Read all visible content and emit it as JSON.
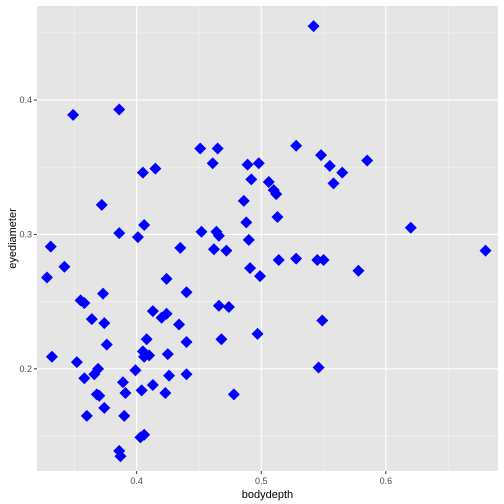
{
  "chart_data": {
    "type": "scatter",
    "xlabel": "bodydepth",
    "ylabel": "eyediameter",
    "xlim": [
      0.32,
      0.69
    ],
    "ylim": [
      0.124,
      0.47
    ],
    "x_ticks": [
      0.4,
      0.5,
      0.6
    ],
    "x_tick_labels": [
      "0.4",
      "0.5",
      "0.6"
    ],
    "y_ticks": [
      0.2,
      0.3,
      0.4
    ],
    "y_tick_labels": [
      "0.2",
      "0.3",
      "0.4"
    ],
    "grid": true,
    "legend": "none",
    "marker": "diamond",
    "colors": {
      "panel_background": "#e5e5e5",
      "grid_major": "#ffffff",
      "point": "#0000ff",
      "tick": "#333333"
    },
    "x": [
      0.542,
      0.349,
      0.386,
      0.451,
      0.465,
      0.528,
      0.498,
      0.489,
      0.461,
      0.548,
      0.585,
      0.415,
      0.405,
      0.506,
      0.555,
      0.492,
      0.51,
      0.512,
      0.565,
      0.558,
      0.486,
      0.452,
      0.372,
      0.513,
      0.62,
      0.406,
      0.386,
      0.401,
      0.488,
      0.464,
      0.466,
      0.331,
      0.435,
      0.472,
      0.462,
      0.514,
      0.49,
      0.528,
      0.545,
      0.55,
      0.491,
      0.578,
      0.68,
      0.328,
      0.342,
      0.424,
      0.499,
      0.44,
      0.373,
      0.355,
      0.358,
      0.466,
      0.474,
      0.413,
      0.424,
      0.364,
      0.374,
      0.42,
      0.434,
      0.497,
      0.408,
      0.468,
      0.44,
      0.376,
      0.405,
      0.406,
      0.41,
      0.425,
      0.399,
      0.332,
      0.352,
      0.44,
      0.426,
      0.546,
      0.369,
      0.366,
      0.389,
      0.413,
      0.358,
      0.404,
      0.423,
      0.391,
      0.37,
      0.368,
      0.478,
      0.374,
      0.39,
      0.36,
      0.406,
      0.403,
      0.386,
      0.387,
      0.549
    ],
    "y": [
      0.455,
      0.389,
      0.393,
      0.364,
      0.364,
      0.366,
      0.353,
      0.352,
      0.353,
      0.359,
      0.355,
      0.349,
      0.346,
      0.339,
      0.351,
      0.341,
      0.333,
      0.33,
      0.346,
      0.338,
      0.325,
      0.302,
      0.322,
      0.313,
      0.305,
      0.307,
      0.301,
      0.298,
      0.309,
      0.302,
      0.299,
      0.291,
      0.29,
      0.288,
      0.289,
      0.281,
      0.296,
      0.282,
      0.281,
      0.281,
      0.275,
      0.273,
      0.288,
      0.268,
      0.276,
      0.267,
      0.269,
      0.257,
      0.256,
      0.251,
      0.249,
      0.247,
      0.246,
      0.243,
      0.241,
      0.237,
      0.234,
      0.238,
      0.233,
      0.226,
      0.222,
      0.222,
      0.22,
      0.218,
      0.213,
      0.209,
      0.21,
      0.211,
      0.199,
      0.209,
      0.205,
      0.196,
      0.195,
      0.201,
      0.2,
      0.196,
      0.19,
      0.188,
      0.193,
      0.184,
      0.182,
      0.182,
      0.18,
      0.181,
      0.181,
      0.171,
      0.165,
      0.165,
      0.151,
      0.149,
      0.139,
      0.135,
      0.236
    ]
  }
}
